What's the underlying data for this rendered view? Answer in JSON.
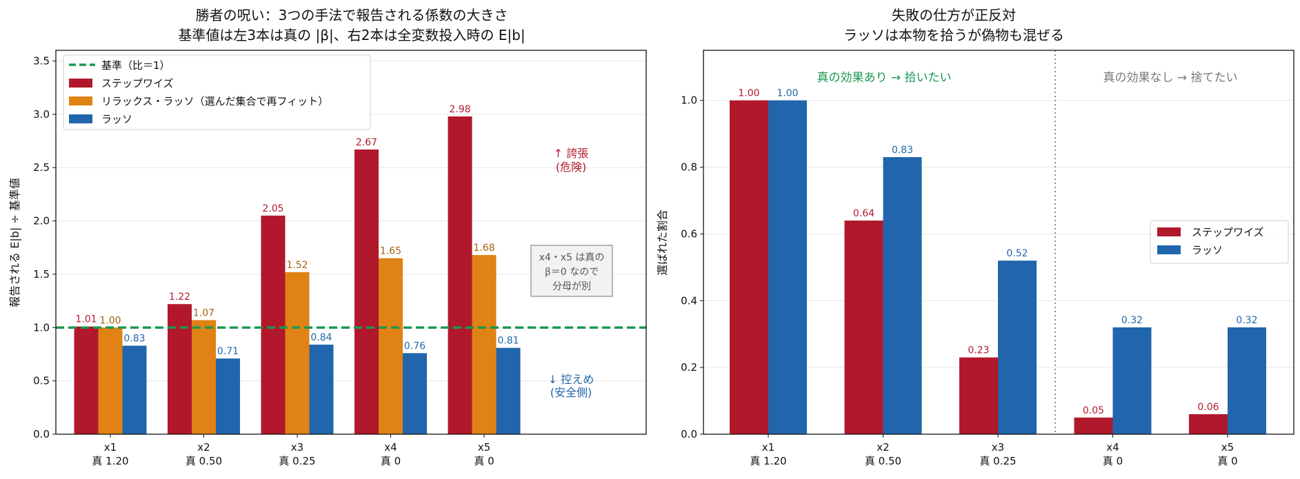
{
  "colors": {
    "stepwise": "#b2182b",
    "relaxed": "#e08214",
    "lasso": "#2166ac",
    "baseline": "#1a9850",
    "stepwise_text": "#b2182b",
    "relaxed_text": "#a6600d",
    "lasso_text": "#2166ac",
    "gray_text": "#777777"
  },
  "chart_data": [
    {
      "type": "bar",
      "title": "勝者の呪い：3つの手法で報告される係数の大きさ",
      "subtitle": "基準値は左3本は真の |β|、右2本は全変数投入時の E|b|",
      "ylabel": "報告される E|b| ÷ 基準値",
      "ylim": [
        0,
        3.6
      ],
      "yticks": [
        "0.0",
        "0.5",
        "1.0",
        "1.5",
        "2.0",
        "2.5",
        "3.0",
        "3.5"
      ],
      "categories": [
        {
          "name": "x1",
          "truth": "真 1.20"
        },
        {
          "name": "x2",
          "truth": "真 0.50"
        },
        {
          "name": "x3",
          "truth": "真 0.25"
        },
        {
          "name": "x4",
          "truth": "真 0"
        },
        {
          "name": "x5",
          "truth": "真 0"
        }
      ],
      "series": [
        {
          "name": "ステップワイズ",
          "values": [
            1.01,
            1.22,
            2.05,
            2.67,
            2.98
          ],
          "labels": [
            "1.01",
            "1.22",
            "2.05",
            "2.67",
            "2.98"
          ]
        },
        {
          "name": "リラックス・ラッソ（選んだ集合で再フィット）",
          "values": [
            1.0,
            1.07,
            1.52,
            1.65,
            1.68
          ],
          "labels": [
            "1.00",
            "1.07",
            "1.52",
            "1.65",
            "1.68"
          ]
        },
        {
          "name": "ラッソ",
          "values": [
            0.83,
            0.71,
            0.84,
            0.76,
            0.81
          ],
          "labels": [
            "0.83",
            "0.71",
            "0.84",
            "0.76",
            "0.81"
          ]
        }
      ],
      "baseline": {
        "name": "基準（比＝1）",
        "value": 1.0
      },
      "legend": "top-left",
      "grid": true,
      "annotations": {
        "exaggeration_line1": "↑ 誇張",
        "exaggeration_line2": "(危険)",
        "box_line1": "x4・x5 は真の",
        "box_line2": "β＝0 なので",
        "box_line3": "分母が別",
        "modest_line1": "↓ 控えめ",
        "modest_line2": "(安全側)"
      }
    },
    {
      "type": "bar",
      "title": "失敗の仕方が正反対",
      "subtitle": "ラッソは本物を拾うが偽物も混ぜる",
      "ylabel": "選ばれた割合",
      "ylim": [
        0,
        1.15
      ],
      "yticks": [
        "0.0",
        "0.2",
        "0.4",
        "0.6",
        "0.8",
        "1.0"
      ],
      "categories": [
        {
          "name": "x1",
          "truth": "真 1.20"
        },
        {
          "name": "x2",
          "truth": "真 0.50"
        },
        {
          "name": "x3",
          "truth": "真 0.25"
        },
        {
          "name": "x4",
          "truth": "真 0"
        },
        {
          "name": "x5",
          "truth": "真 0"
        }
      ],
      "series": [
        {
          "name": "ステップワイズ",
          "values": [
            1.0,
            0.64,
            0.23,
            0.05,
            0.06
          ],
          "labels": [
            "1.00",
            "0.64",
            "0.23",
            "0.05",
            "0.06"
          ]
        },
        {
          "name": "ラッソ",
          "values": [
            1.0,
            0.83,
            0.52,
            0.32,
            0.32
          ],
          "labels": [
            "1.00",
            "0.83",
            "0.52",
            "0.32",
            "0.32"
          ]
        }
      ],
      "legend": "center-right",
      "grid": true,
      "annotations": {
        "true_effect": "真の効果あり → 拾いたい",
        "no_effect": "真の効果なし → 捨てたい"
      }
    }
  ]
}
